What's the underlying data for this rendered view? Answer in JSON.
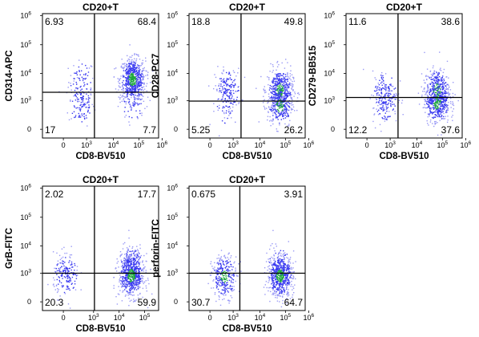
{
  "chart_data": [
    {
      "type": "scatter",
      "title": "CD20+T",
      "xlabel": "CD8-BV510",
      "ylabel": "CD314-APC",
      "x_axis_ticks": [
        "0",
        "10^3",
        "10^4",
        "10^5",
        "10^6"
      ],
      "y_axis_ticks": [
        "0",
        "10^3",
        "10^4",
        "10^5",
        "10^6"
      ],
      "x_gate": 2000,
      "y_gate": 2000,
      "quadrants": {
        "top_left": "6.93",
        "top_right": "68.4",
        "bottom_left": "17",
        "bottom_right": "7.7"
      },
      "populations": [
        {
          "x": 150,
          "y": 5000,
          "share": 0.08
        },
        {
          "x": 150,
          "y": 500,
          "share": 0.12
        },
        {
          "x": 55000,
          "y": 6000,
          "share": 0.68
        },
        {
          "x": 55000,
          "y": 900,
          "share": 0.08
        }
      ]
    },
    {
      "type": "scatter",
      "title": "CD20+T",
      "xlabel": "CD8-BV510",
      "ylabel": "CD28-PC7",
      "x_axis_ticks": [
        "0",
        "10^3",
        "10^4",
        "10^5",
        "10^6"
      ],
      "y_axis_ticks": [
        "0",
        "10^3",
        "10^4",
        "10^5",
        "10^6"
      ],
      "x_gate": 2000,
      "y_gate": 900,
      "quadrants": {
        "top_left": "18.8",
        "top_right": "49.8",
        "bottom_left": "5.25",
        "bottom_right": "26.2"
      },
      "populations": [
        {
          "x": 150,
          "y": 2500,
          "share": 0.18
        },
        {
          "x": 150,
          "y": 300,
          "share": 0.05
        },
        {
          "x": 60000,
          "y": 2500,
          "share": 0.5
        },
        {
          "x": 60000,
          "y": 300,
          "share": 0.26
        }
      ]
    },
    {
      "type": "scatter",
      "title": "CD20+T",
      "xlabel": "CD8-BV510",
      "ylabel": "CD279-BB515",
      "x_axis_ticks": [
        "0",
        "10^3",
        "10^4",
        "10^5",
        "10^6"
      ],
      "y_axis_ticks": [
        "0",
        "10^3",
        "10^4",
        "10^5",
        "10^6"
      ],
      "x_gate": 2000,
      "y_gate": 1300,
      "quadrants": {
        "top_left": "11.6",
        "top_right": "38.6",
        "bottom_left": "12.2",
        "bottom_right": "37.6"
      },
      "populations": [
        {
          "x": 150,
          "y": 2200,
          "share": 0.12
        },
        {
          "x": 150,
          "y": 700,
          "share": 0.12
        },
        {
          "x": 60000,
          "y": 2500,
          "share": 0.38
        },
        {
          "x": 60000,
          "y": 700,
          "share": 0.38
        }
      ]
    },
    {
      "type": "scatter",
      "title": "CD20+T",
      "xlabel": "CD8-BV510",
      "ylabel": "GrB-FITC",
      "x_axis_ticks": [
        "0",
        "10^3",
        "10^4",
        "10^5"
      ],
      "y_axis_ticks": [
        "0",
        "10^3",
        "10^4",
        "10^5",
        "10^6"
      ],
      "x_gate": 2000,
      "y_gate": 1000,
      "quadrants": {
        "top_left": "2.02",
        "top_right": "17.7",
        "bottom_left": "20.3",
        "bottom_right": "59.9"
      },
      "populations": [
        {
          "x": 0,
          "y": 700,
          "share": 0.2
        },
        {
          "x": 50000,
          "y": 2000,
          "share": 0.18
        },
        {
          "x": 50000,
          "y": 600,
          "share": 0.6
        }
      ]
    },
    {
      "type": "scatter",
      "title": "CD20+T",
      "xlabel": "CD8-BV510",
      "ylabel": "perforin-FITC",
      "x_axis_ticks": [
        "0",
        "10^3",
        "10^4",
        "10^5",
        "10^6"
      ],
      "y_axis_ticks": [
        "0",
        "10^3",
        "10^4",
        "10^5",
        "10^6"
      ],
      "x_gate": 1800,
      "y_gate": 1000,
      "quadrants": {
        "top_left": "0.675",
        "top_right": "3.91",
        "bottom_left": "30.7",
        "bottom_right": "64.7"
      },
      "populations": [
        {
          "x": 50,
          "y": 500,
          "share": 0.31
        },
        {
          "x": 60000,
          "y": 600,
          "share": 0.65
        },
        {
          "x": 60000,
          "y": 3000,
          "share": 0.04
        }
      ]
    }
  ]
}
